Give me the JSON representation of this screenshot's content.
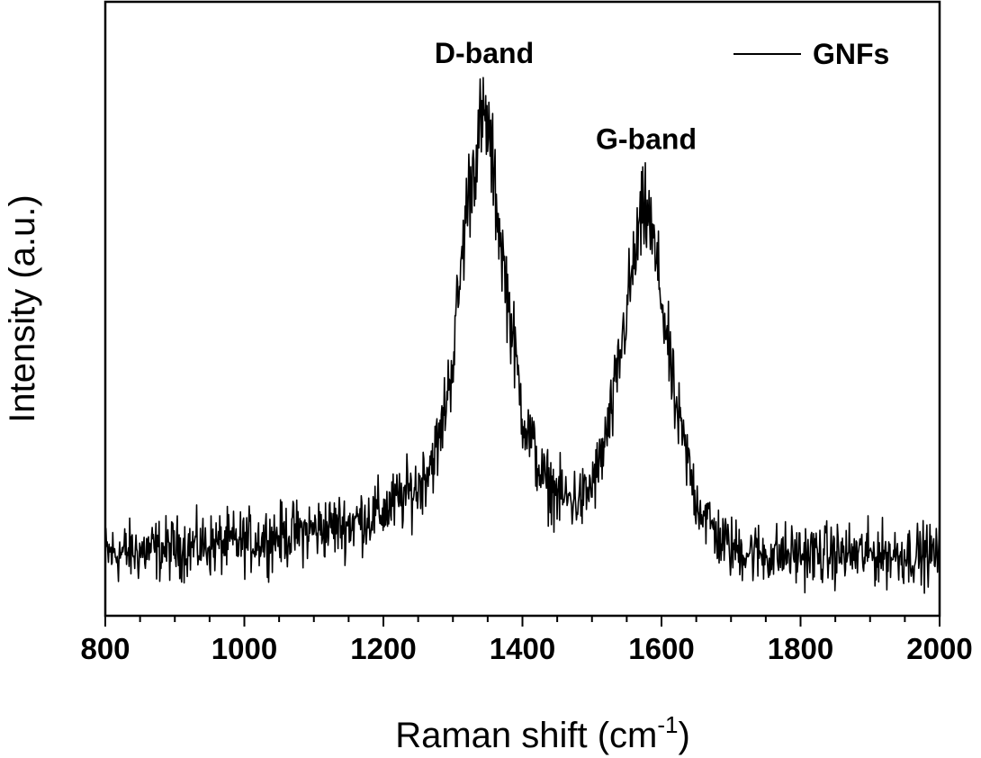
{
  "chart_data": {
    "type": "line",
    "xlabel": "Raman shift (cm",
    "xlabel_superscript": "-1",
    "xlabel_suffix": ")",
    "ylabel": "Intensity (a.u.)",
    "xlim": [
      800,
      2000
    ],
    "ylim": [
      0,
      1
    ],
    "x_ticks": [
      800,
      1000,
      1200,
      1400,
      1600,
      1800,
      2000
    ],
    "x_tick_labels": [
      "800",
      "1000",
      "1200",
      "1400",
      "1600",
      "1800",
      "2000"
    ],
    "y_tick_labels_shown": false,
    "grid": false,
    "legend_position": "top-right",
    "series": [
      {
        "name": "GNFs",
        "color": "#000000",
        "noisy": true,
        "x": [
          800,
          900,
          1000,
          1100,
          1150,
          1200,
          1250,
          1280,
          1300,
          1320,
          1340,
          1350,
          1370,
          1400,
          1430,
          1460,
          1490,
          1510,
          1530,
          1550,
          1570,
          1580,
          1600,
          1620,
          1650,
          1680,
          1700,
          1750,
          1800,
          1900,
          2000
        ],
        "y": [
          0.1,
          0.11,
          0.12,
          0.14,
          0.15,
          0.17,
          0.21,
          0.28,
          0.42,
          0.67,
          0.8,
          0.8,
          0.6,
          0.33,
          0.22,
          0.19,
          0.19,
          0.24,
          0.34,
          0.5,
          0.64,
          0.66,
          0.52,
          0.34,
          0.19,
          0.13,
          0.11,
          0.1,
          0.1,
          0.1,
          0.1
        ]
      }
    ],
    "annotations": [
      {
        "text": "D-band",
        "x": 1345,
        "y": 0.9
      },
      {
        "text": "G-band",
        "x": 1578,
        "y": 0.76
      }
    ]
  }
}
